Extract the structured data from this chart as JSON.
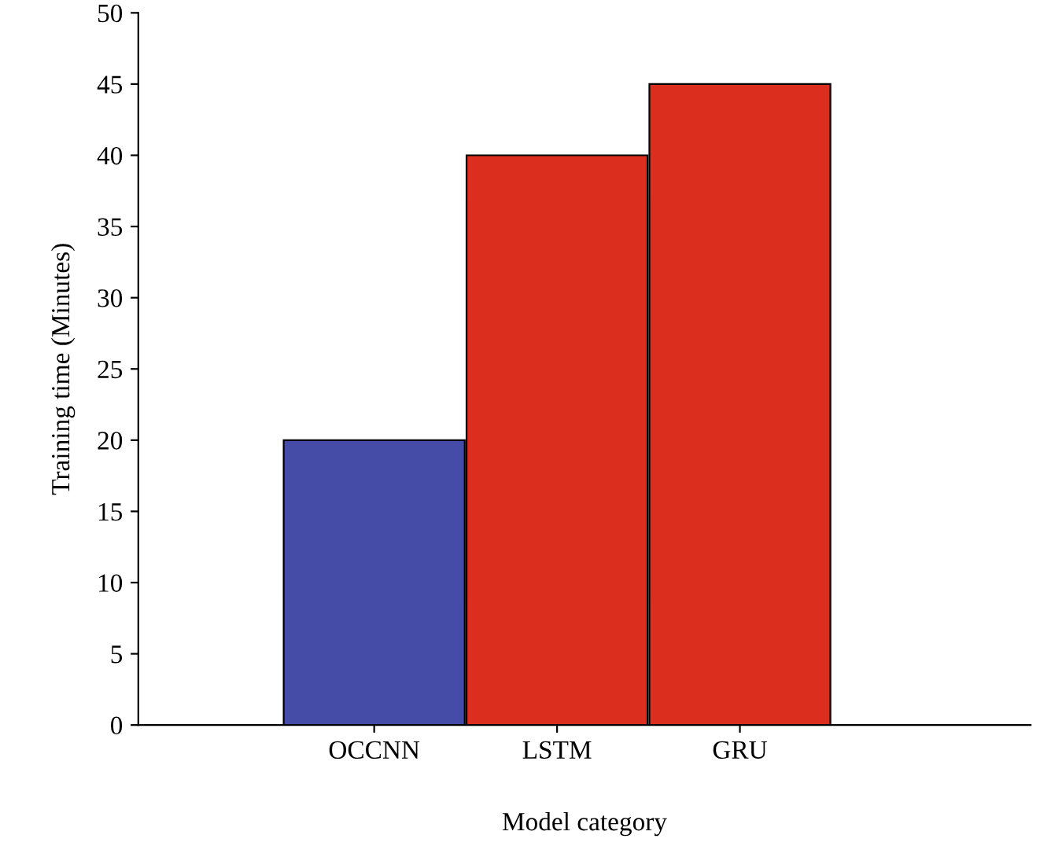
{
  "chart_data": {
    "type": "bar",
    "xlabel": "Model category",
    "ylabel": "Training time (Minutes)",
    "categories": [
      "OCCNN",
      "LSTM",
      "GRU"
    ],
    "values": [
      20,
      40,
      45
    ],
    "colors": [
      "#444ca8",
      "#dc2e1e",
      "#dc2e1e"
    ],
    "ylim": [
      0,
      50
    ],
    "yticks": [
      0,
      5,
      10,
      15,
      20,
      25,
      30,
      35,
      40,
      45,
      50
    ],
    "grid": false
  }
}
